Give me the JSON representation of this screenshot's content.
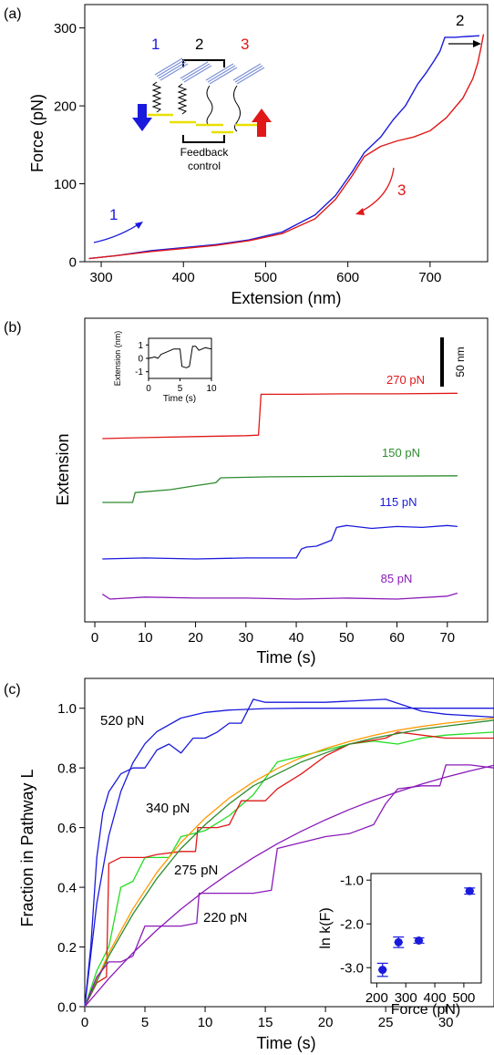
{
  "chart_data": [
    {
      "panel": "(a)",
      "type": "line",
      "xlabel": "Extension (nm)",
      "ylabel": "Force (pN)",
      "xlim": [
        280,
        770
      ],
      "ylim": [
        0,
        330
      ],
      "xticks": [
        300,
        400,
        500,
        600,
        700
      ],
      "yticks": [
        0,
        100,
        200,
        300
      ],
      "grid": false,
      "series": [
        {
          "color": "#1a1adc",
          "x": [
            285,
            320,
            360,
            400,
            440,
            480,
            520,
            560,
            585,
            605,
            620,
            640,
            655,
            670,
            685,
            695,
            705,
            712,
            718,
            722,
            730,
            745,
            760
          ],
          "y": [
            4,
            8,
            14,
            18,
            22,
            28,
            38,
            60,
            85,
            115,
            140,
            160,
            182,
            200,
            228,
            242,
            258,
            270,
            288,
            288,
            288,
            289,
            290
          ]
        },
        {
          "color": "#e01818",
          "x": [
            285,
            320,
            360,
            400,
            440,
            480,
            520,
            560,
            585,
            605,
            620,
            640,
            660,
            680,
            700,
            720,
            740,
            752,
            758,
            762,
            765
          ],
          "y": [
            4,
            8,
            13,
            17,
            21,
            27,
            36,
            55,
            80,
            110,
            135,
            148,
            155,
            160,
            168,
            185,
            210,
            235,
            255,
            275,
            292
          ]
        }
      ],
      "annotations": [
        {
          "text": "1",
          "color": "#1a1adc"
        },
        {
          "text": "2",
          "color": "#000000"
        },
        {
          "text": "3",
          "color": "#e01818"
        }
      ],
      "inset": {
        "labels": [
          {
            "text": "1",
            "color": "#1a1adc"
          },
          {
            "text": "2",
            "color": "#000000"
          },
          {
            "text": "3",
            "color": "#e01818"
          }
        ],
        "caption_lines": [
          "Feedback",
          "control"
        ]
      }
    },
    {
      "panel": "(b)",
      "type": "line",
      "xlabel": "Time (s)",
      "ylabel": "Extension",
      "xlim": [
        -2,
        78
      ],
      "xticks": [
        0,
        10,
        20,
        30,
        40,
        50,
        60,
        70
      ],
      "scale_bar": "50 nm",
      "series": [
        {
          "name": "270 pN",
          "color": "#e01818",
          "x": [
            1.5,
            10,
            20,
            30,
            32.5,
            33,
            40,
            50,
            60,
            72
          ],
          "y": [
            0,
            1,
            2,
            3,
            3.5,
            45,
            45,
            45.5,
            45.5,
            46
          ]
        },
        {
          "name": "150 pN",
          "color": "#2e8b2e",
          "x": [
            1.5,
            7.5,
            8,
            15,
            20,
            24,
            25,
            35,
            50,
            72
          ],
          "y": [
            0,
            0,
            10,
            13,
            17,
            20,
            25,
            26,
            26.5,
            27
          ]
        },
        {
          "name": "115 pN",
          "color": "#1a1adc",
          "x": [
            1.5,
            10,
            20,
            30,
            40,
            41,
            42,
            44,
            47,
            48,
            50,
            55,
            60,
            65,
            70,
            72
          ],
          "y": [
            0,
            1,
            0,
            1,
            1,
            10,
            12,
            13,
            19,
            32,
            34,
            31,
            33,
            32,
            34,
            33
          ]
        },
        {
          "name": "85 pN",
          "color": "#8a1ab8",
          "x": [
            1.5,
            3,
            10,
            20,
            30,
            40,
            50,
            60,
            70,
            72
          ],
          "y": [
            5,
            0,
            2,
            1,
            1,
            0,
            1,
            0,
            3,
            6
          ]
        }
      ],
      "inset": {
        "xlabel": "Time (s)",
        "ylabel": "Extension (nm)",
        "xlim": [
          0,
          10
        ],
        "ylim": [
          -1.5,
          1.5
        ],
        "xticks": [
          0,
          5,
          10
        ],
        "yticks": [
          -1,
          0,
          1
        ],
        "series": [
          {
            "color": "#000000",
            "x": [
              0,
              1,
              1.5,
              2,
              3,
              4,
              5,
              5.3,
              6,
              6.5,
              7,
              7.5,
              8,
              9,
              10
            ],
            "y": [
              0.0,
              0.1,
              0.0,
              0.3,
              0.5,
              0.7,
              0.7,
              -0.6,
              -0.7,
              -0.6,
              0.9,
              0.9,
              0.6,
              0.8,
              0.7
            ]
          }
        ]
      }
    },
    {
      "panel": "(c)",
      "type": "line",
      "xlabel": "Time (s)",
      "ylabel": "Fraction in Pathway L",
      "xlim": [
        0,
        34
      ],
      "ylim": [
        0,
        1.1
      ],
      "xticks": [
        0,
        5,
        10,
        15,
        20,
        25,
        30
      ],
      "yticks": [
        0.0,
        0.2,
        0.4,
        0.6,
        0.8,
        1.0
      ],
      "series": [
        {
          "name": "520 pN",
          "color": "#1a1adc",
          "x": [
            0,
            0.5,
            1,
            1.5,
            2,
            3,
            4,
            5,
            6,
            7,
            8,
            9,
            10,
            11,
            12,
            13,
            14,
            15,
            20,
            25,
            28,
            30,
            34
          ],
          "y": [
            0,
            0.2,
            0.5,
            0.65,
            0.72,
            0.78,
            0.8,
            0.8,
            0.86,
            0.88,
            0.85,
            0.9,
            0.9,
            0.92,
            0.95,
            0.95,
            1.03,
            1.02,
            1.02,
            1.03,
            0.99,
            0.98,
            0.97
          ]
        },
        {
          "name": "",
          "color": "#1a1adc",
          "x": [
            0,
            1,
            2,
            3,
            4,
            5,
            6,
            8,
            10,
            12,
            15,
            18,
            20,
            25,
            30,
            34
          ],
          "y": [
            0,
            0.346,
            0.573,
            0.721,
            0.817,
            0.881,
            0.922,
            0.967,
            0.986,
            0.994,
            0.999,
            1.0,
            1.0,
            1.0,
            1.0,
            1.0
          ]
        },
        {
          "name": "340 pN",
          "color": "#22dd22",
          "x": [
            0,
            1,
            2,
            3,
            4,
            5,
            6,
            7,
            8,
            9,
            10,
            12,
            14,
            16,
            18,
            20,
            22,
            24,
            26,
            28,
            30,
            34
          ],
          "y": [
            0,
            0.12,
            0.2,
            0.4,
            0.42,
            0.5,
            0.5,
            0.5,
            0.57,
            0.58,
            0.59,
            0.64,
            0.71,
            0.82,
            0.84,
            0.86,
            0.88,
            0.89,
            0.88,
            0.9,
            0.91,
            0.92
          ]
        },
        {
          "name": "275 pN",
          "color": "#e01818",
          "x": [
            0,
            1,
            1.8,
            2,
            3,
            5,
            6,
            8,
            9.2,
            9.4,
            11,
            12,
            13,
            15,
            16,
            18,
            20,
            22,
            25,
            26,
            28,
            30,
            34
          ],
          "y": [
            0,
            0.08,
            0.1,
            0.48,
            0.5,
            0.5,
            0.51,
            0.52,
            0.52,
            0.6,
            0.6,
            0.61,
            0.69,
            0.69,
            0.73,
            0.78,
            0.84,
            0.88,
            0.9,
            0.92,
            0.91,
            0.9,
            0.9
          ]
        },
        {
          "name": "",
          "color": "#ff9900",
          "x": [
            0,
            2,
            4,
            6,
            8,
            10,
            12,
            14,
            16,
            18,
            20,
            22,
            24,
            26,
            28,
            30,
            34
          ],
          "y": [
            0,
            0.18,
            0.328,
            0.45,
            0.55,
            0.632,
            0.699,
            0.753,
            0.798,
            0.835,
            0.865,
            0.889,
            0.909,
            0.926,
            0.939,
            0.95,
            0.967
          ]
        },
        {
          "name": "",
          "color": "#2e8b2e",
          "x": [
            0,
            2,
            4,
            6,
            8,
            10,
            12,
            14,
            16,
            18,
            20,
            22,
            24,
            26,
            28,
            30,
            34
          ],
          "y": [
            0,
            0.17,
            0.31,
            0.43,
            0.53,
            0.61,
            0.68,
            0.74,
            0.78,
            0.82,
            0.85,
            0.88,
            0.9,
            0.915,
            0.93,
            0.94,
            0.96
          ]
        },
        {
          "name": "220 pN",
          "color": "#8a1ab8",
          "x": [
            0,
            1,
            2,
            3,
            4,
            5,
            6,
            8,
            9.3,
            9.5,
            10,
            12,
            14,
            15.5,
            16,
            18,
            20,
            22,
            24,
            25,
            26,
            28,
            29.5,
            30,
            32,
            34
          ],
          "y": [
            0,
            0.1,
            0.15,
            0.15,
            0.17,
            0.27,
            0.27,
            0.27,
            0.28,
            0.38,
            0.38,
            0.38,
            0.38,
            0.39,
            0.53,
            0.55,
            0.57,
            0.58,
            0.61,
            0.68,
            0.73,
            0.74,
            0.74,
            0.81,
            0.81,
            0.8
          ]
        },
        {
          "name": "",
          "color": "#8a1ab8",
          "x": [
            0,
            2,
            4,
            6,
            8,
            10,
            12,
            14,
            16,
            18,
            20,
            22,
            24,
            26,
            28,
            30,
            32,
            34
          ],
          "y": [
            0,
            0.094,
            0.18,
            0.257,
            0.327,
            0.39,
            0.447,
            0.499,
            0.546,
            0.588,
            0.626,
            0.661,
            0.692,
            0.72,
            0.746,
            0.769,
            0.79,
            0.809
          ]
        }
      ],
      "inset": {
        "type": "scatter",
        "xlabel": "Force (pN)",
        "ylabel": "ln k(F)",
        "xlim": [
          180,
          560
        ],
        "ylim": [
          -3.35,
          -0.85
        ],
        "xticks": [
          200,
          300,
          400,
          500
        ],
        "yticks": [
          -1.0,
          -2.0,
          -3.0
        ],
        "ytick_labels": [
          "-1.0",
          "-2.0",
          "-3.0"
        ],
        "color": "#1a1adc",
        "points": [
          {
            "x": 220,
            "y": -3.05,
            "xerr": 15,
            "yerr": 0.15
          },
          {
            "x": 275,
            "y": -2.42,
            "xerr": 15,
            "yerr": 0.12
          },
          {
            "x": 345,
            "y": -2.38,
            "xerr": 15,
            "yerr": 0.06
          },
          {
            "x": 520,
            "y": -1.25,
            "xerr": 15,
            "yerr": 0.07
          }
        ]
      }
    }
  ]
}
